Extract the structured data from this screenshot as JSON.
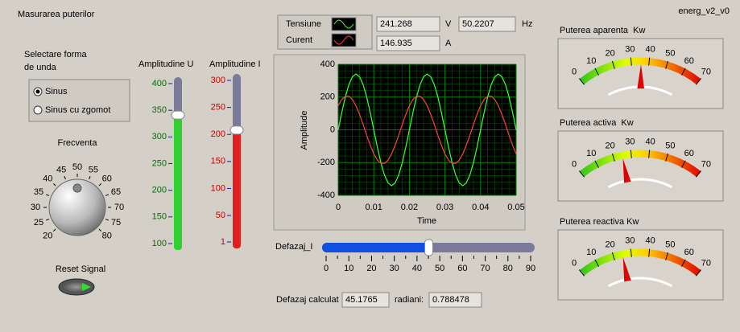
{
  "header": {
    "title": "Masurarea puterilor",
    "version": "energ_v2_v0"
  },
  "waveform_select": {
    "label_lines": [
      "Selectare forma",
      "de unda"
    ],
    "options": [
      "Sinus",
      "Sinus cu zgomot"
    ],
    "selected": 0
  },
  "frequency_knob": {
    "label": "Frecventa",
    "ticks": [
      20,
      25,
      30,
      35,
      40,
      45,
      50,
      55,
      60,
      65,
      70,
      75,
      80
    ],
    "range": [
      20,
      80
    ],
    "value": 50
  },
  "reset": {
    "label": "Reset Signal"
  },
  "amplitude_u": {
    "label": "Amplitudine U",
    "ticks": [
      100,
      150,
      200,
      250,
      300,
      350,
      400
    ],
    "range": [
      100,
      400
    ],
    "value": 341
  },
  "amplitude_i": {
    "label": "Amplitudine I",
    "ticks": [
      1,
      50,
      100,
      150,
      200,
      250,
      300
    ],
    "range": [
      1,
      300
    ],
    "value": 208
  },
  "readouts": {
    "voltage": 241.268,
    "voltage_unit": "V",
    "frequency": 50.2207,
    "frequency_unit": "Hz",
    "current": 146.935,
    "current_unit": "A"
  },
  "graph": {
    "y_label": "Amplitude",
    "x_label": "Time",
    "xlim": [
      0,
      0.05
    ],
    "ylim": [
      -400,
      400
    ],
    "xticks": [
      0,
      0.01,
      0.02,
      0.03,
      0.04,
      0.05
    ],
    "yticks": [
      -400,
      -200,
      0,
      200,
      400
    ],
    "x": [
      0,
      0.001,
      0.002,
      0.003,
      0.004,
      0.005,
      0.006,
      0.007,
      0.008,
      0.009,
      0.01,
      0.011,
      0.012,
      0.013,
      0.014,
      0.015,
      0.016,
      0.017,
      0.018,
      0.019,
      0.02,
      0.021,
      0.022,
      0.023,
      0.024,
      0.025,
      0.026,
      0.027,
      0.028,
      0.029,
      0.03,
      0.031,
      0.032,
      0.033,
      0.034,
      0.035,
      0.036,
      0.037,
      0.038,
      0.039,
      0.04,
      0.041,
      0.042,
      0.043,
      0.044,
      0.045,
      0.046,
      0.047,
      0.048,
      0.049,
      0.05
    ],
    "series": [
      {
        "name": "Tensiune",
        "color": "#40ff40",
        "values": [
          0,
          105,
          201,
          276,
          324,
          341,
          324,
          276,
          201,
          105,
          0,
          -105,
          -201,
          -276,
          -324,
          -341,
          -324,
          -276,
          -201,
          -105,
          0,
          105,
          201,
          276,
          324,
          341,
          324,
          276,
          201,
          105,
          0,
          -105,
          -201,
          -276,
          -324,
          -341,
          -324,
          -276,
          -201,
          -105,
          0,
          105,
          201,
          276,
          324,
          341,
          324,
          276,
          201,
          105,
          0
        ]
      },
      {
        "name": "Curent",
        "color": "#ff4040",
        "values": [
          147,
          185,
          205,
          205,
          185,
          147,
          94,
          33,
          -33,
          -94,
          -147,
          -185,
          -205,
          -205,
          -185,
          -147,
          -94,
          -33,
          33,
          94,
          147,
          185,
          205,
          205,
          185,
          147,
          94,
          33,
          -33,
          -94,
          -147,
          -185,
          -205,
          -205,
          -185,
          -147,
          -94,
          -33,
          33,
          94,
          147,
          185,
          205,
          205,
          185,
          147,
          94,
          33,
          -33,
          -94,
          -147
        ]
      }
    ]
  },
  "phase_slider": {
    "label": "Defazaj_I",
    "ticks": [
      0,
      10,
      20,
      30,
      40,
      50,
      60,
      70,
      80,
      90
    ],
    "minor_ticks": [
      5,
      15,
      25,
      35,
      45,
      55,
      65,
      75,
      85
    ],
    "range": [
      0,
      90
    ],
    "value": 45.1765
  },
  "phase_readout": {
    "label": "Defazaj calculat",
    "degrees": 45.1765,
    "radians_label": "radiani:",
    "radians": 0.788478
  },
  "gauges": [
    {
      "label": "Puterea aparenta  Kw",
      "ticks": [
        0,
        10,
        20,
        30,
        40,
        50,
        60,
        70
      ],
      "range": [
        0,
        70
      ],
      "value": 35.45
    },
    {
      "label": "Puterea activa  Kw",
      "ticks": [
        0,
        10,
        20,
        30,
        40,
        50,
        60,
        70
      ],
      "range": [
        0,
        70
      ],
      "value": 25
    },
    {
      "label": "Puterea reactiva Kw",
      "ticks": [
        0,
        10,
        20,
        30,
        40,
        50,
        60,
        70
      ],
      "range": [
        0,
        70
      ],
      "value": 25.1
    }
  ]
}
